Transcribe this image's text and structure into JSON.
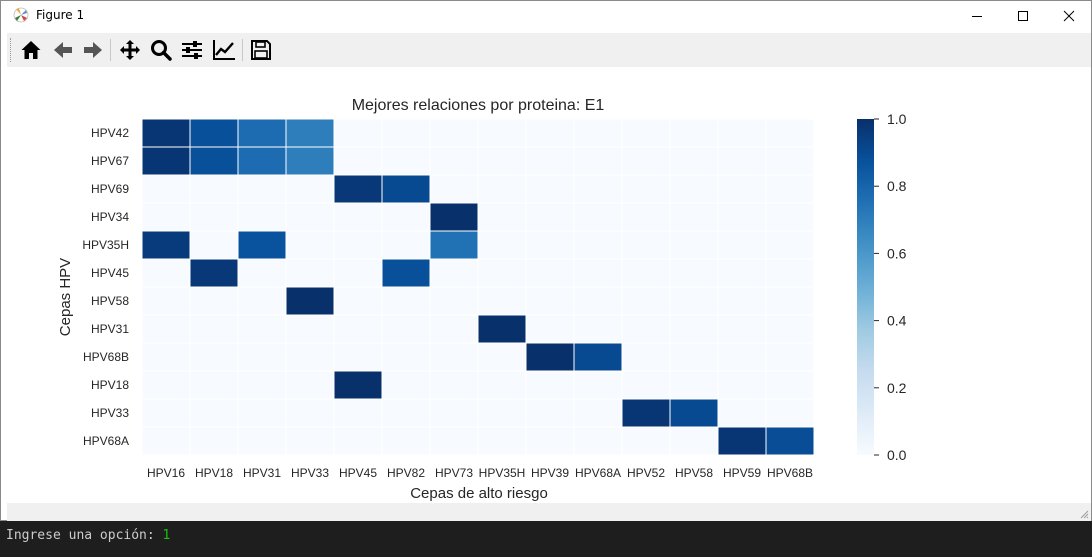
{
  "window": {
    "title": "Figure 1",
    "icons": [
      "matplotlib-icon",
      "minimize-icon",
      "maximize-icon",
      "close-icon"
    ]
  },
  "toolbar": {
    "buttons": [
      {
        "name": "home",
        "icon": "home-icon"
      },
      {
        "name": "back",
        "icon": "arrow-left-icon"
      },
      {
        "name": "forward",
        "icon": "arrow-right-icon"
      },
      {
        "name": "pan",
        "icon": "move-arrows-icon"
      },
      {
        "name": "zoom",
        "icon": "magnifier-icon"
      },
      {
        "name": "configure-subplots",
        "icon": "sliders-icon"
      },
      {
        "name": "edit-axis",
        "icon": "line-chart-icon"
      },
      {
        "name": "save",
        "icon": "floppy-disk-icon"
      }
    ]
  },
  "console": {
    "prompt": "Ingrese una opción: ",
    "input": "1"
  },
  "colors": {
    "cmap": "Blues",
    "cmap_low": "#f7fbff",
    "cmap_high": "#08306b",
    "cell_border": "#ffffff"
  },
  "chart_data": {
    "type": "heatmap",
    "title": "Mejores relaciones por proteina: E1",
    "xlabel": "Cepas de alto riesgo",
    "ylabel": "Cepas HPV",
    "x_categories": [
      "HPV16",
      "HPV18",
      "HPV31",
      "HPV33",
      "HPV45",
      "HPV82",
      "HPV73",
      "HPV35H",
      "HPV39",
      "HPV68A",
      "HPV52",
      "HPV58",
      "HPV59",
      "HPV68B"
    ],
    "y_categories": [
      "HPV42",
      "HPV67",
      "HPV69",
      "HPV34",
      "HPV35H",
      "HPV45",
      "HPV58",
      "HPV31",
      "HPV68B",
      "HPV18",
      "HPV33",
      "HPV68A"
    ],
    "values": [
      [
        0.98,
        0.88,
        0.77,
        0.7,
        0,
        0,
        0,
        0,
        0,
        0,
        0,
        0,
        0,
        0
      ],
      [
        0.98,
        0.88,
        0.77,
        0.7,
        0,
        0,
        0,
        0,
        0,
        0,
        0,
        0,
        0,
        0
      ],
      [
        0,
        0,
        0,
        0,
        0.97,
        0.9,
        0,
        0,
        0,
        0,
        0,
        0,
        0,
        0
      ],
      [
        0,
        0,
        0,
        0,
        0,
        0,
        1.0,
        0,
        0,
        0,
        0,
        0,
        0,
        0
      ],
      [
        0.96,
        0,
        0.87,
        0,
        0,
        0,
        0.75,
        0,
        0,
        0,
        0,
        0,
        0,
        0
      ],
      [
        0,
        0.97,
        0,
        0,
        0,
        0.88,
        0,
        0,
        0,
        0,
        0,
        0,
        0,
        0
      ],
      [
        0,
        0,
        0,
        1.0,
        0,
        0,
        0,
        0,
        0,
        0,
        0,
        0,
        0,
        0
      ],
      [
        0,
        0,
        0,
        0,
        0,
        0,
        0,
        1.0,
        0,
        0,
        0,
        0,
        0,
        0
      ],
      [
        0,
        0,
        0,
        0,
        0,
        0,
        0,
        0,
        1.0,
        0.9,
        0,
        0,
        0,
        0
      ],
      [
        0,
        0,
        0,
        0,
        1.0,
        0,
        0,
        0,
        0,
        0,
        0,
        0,
        0,
        0
      ],
      [
        0,
        0,
        0,
        0,
        0,
        0,
        0,
        0,
        0,
        0,
        0.98,
        0.9,
        0,
        0
      ],
      [
        0,
        0,
        0,
        0,
        0,
        0,
        0,
        0,
        0,
        0,
        0,
        0,
        0.98,
        0.89
      ]
    ],
    "vmin": 0,
    "vmax": 1,
    "colorbar_ticks": [
      "0.0",
      "0.2",
      "0.4",
      "0.6",
      "0.8",
      "1.0"
    ],
    "grid": false,
    "legend": "colorbar-right"
  }
}
